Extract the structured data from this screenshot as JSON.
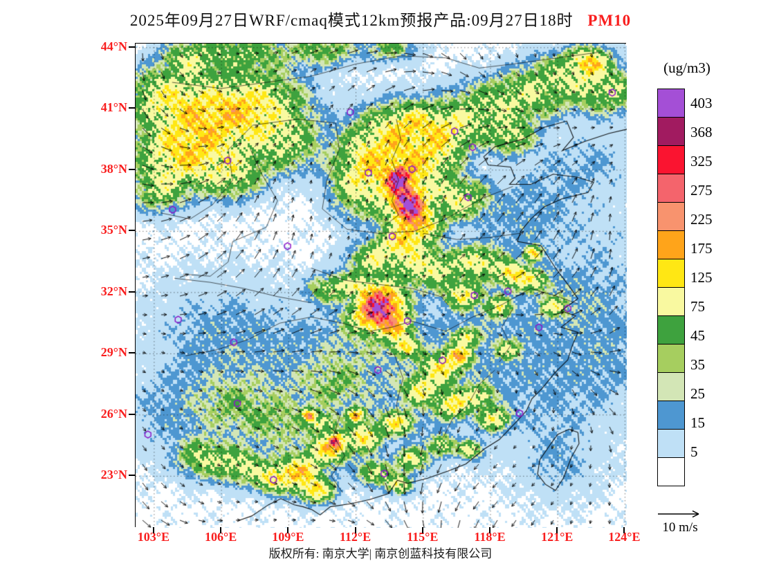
{
  "title": {
    "date_line": "2025年09月27日WRF/cmaq模式12km预报产品:09月27日18时",
    "pollutant": "PM10"
  },
  "colorbar": {
    "units": "(ug/m3)",
    "tick_labels": [
      "403",
      "368",
      "325",
      "275",
      "225",
      "175",
      "125",
      "75",
      "45",
      "35",
      "25",
      "15",
      "5"
    ],
    "thresholds": [
      5,
      15,
      25,
      35,
      45,
      75,
      125,
      175,
      225,
      275,
      325,
      368,
      403
    ],
    "colors_low_to_high": [
      "#FFFFFF",
      "#BFE0F6",
      "#4E97D1",
      "#D3E6B6",
      "#A6CE5F",
      "#3EA23E",
      "#F9F9A0",
      "#FFE714",
      "#FFA41A",
      "#F8936E",
      "#F4646C",
      "#FA1430",
      "#A11B60",
      "#A44FD6"
    ]
  },
  "axes": {
    "lat_labels": [
      "44°N",
      "41°N",
      "38°N",
      "35°N",
      "32°N",
      "29°N",
      "26°N",
      "23°N"
    ],
    "lat_values": [
      44,
      41,
      38,
      35,
      32,
      29,
      26,
      23
    ],
    "lon_labels": [
      "103°E",
      "106°E",
      "109°E",
      "112°E",
      "115°E",
      "118°E",
      "121°E",
      "124°E"
    ],
    "lon_values": [
      103,
      106,
      109,
      112,
      115,
      118,
      121,
      124
    ]
  },
  "wind_reference": {
    "label": "10 m/s"
  },
  "footer": {
    "copyright": "版权所有: 南京大学| 南京创蓝科技有限公司"
  },
  "style": {
    "axis_label_color": "#F91E1E",
    "pollutant_color": "#F91E1E",
    "marker_color": "#8A17C8"
  },
  "map": {
    "extent": {
      "lon_min": 102.17,
      "lon_max": 124.08,
      "lat_min": 20.47,
      "lat_max": 44.2
    },
    "city_markers": [
      [
        116.4,
        39.9
      ],
      [
        117.2,
        39.12
      ],
      [
        114.5,
        38.04
      ],
      [
        112.55,
        37.87
      ],
      [
        111.75,
        40.84
      ],
      [
        117.0,
        36.67
      ],
      [
        113.62,
        34.75
      ],
      [
        108.95,
        34.27
      ],
      [
        103.82,
        36.06
      ],
      [
        106.28,
        38.47
      ],
      [
        121.45,
        31.22
      ],
      [
        118.78,
        32.06
      ],
      [
        120.16,
        30.29
      ],
      [
        117.28,
        31.86
      ],
      [
        114.3,
        30.6
      ],
      [
        112.98,
        28.2
      ],
      [
        115.86,
        28.68
      ],
      [
        104.07,
        30.67
      ],
      [
        106.55,
        29.56
      ],
      [
        106.71,
        26.57
      ],
      [
        102.72,
        25.04
      ],
      [
        108.32,
        22.82
      ],
      [
        113.26,
        23.13
      ],
      [
        119.3,
        26.08
      ],
      [
        123.43,
        41.8
      ]
    ],
    "pollution_centers": [
      [
        105.5,
        40.5,
        2.2,
        1.6,
        115
      ],
      [
        104.3,
        38.7,
        1.8,
        1.4,
        120
      ],
      [
        107.5,
        41.2,
        2.0,
        1.4,
        95
      ],
      [
        103.4,
        41.6,
        1.5,
        1.2,
        80
      ],
      [
        108.8,
        39.3,
        1.4,
        1.2,
        70
      ],
      [
        106.5,
        37.8,
        1.2,
        1.0,
        75
      ],
      [
        103.2,
        37.0,
        1.0,
        0.9,
        60
      ],
      [
        107.0,
        43.8,
        2.0,
        0.9,
        55
      ],
      [
        104.6,
        43.4,
        1.1,
        0.8,
        65
      ],
      [
        110.6,
        43.9,
        1.3,
        0.7,
        50
      ],
      [
        113.5,
        44.0,
        1.0,
        0.6,
        45
      ],
      [
        113.5,
        39.2,
        1.6,
        1.5,
        110
      ],
      [
        114.6,
        40.3,
        1.2,
        0.9,
        85
      ],
      [
        112.3,
        37.6,
        1.2,
        1.6,
        105
      ],
      [
        114.2,
        37.0,
        1.0,
        1.4,
        155
      ],
      [
        114.3,
        36.3,
        0.55,
        0.6,
        330
      ],
      [
        113.9,
        37.55,
        0.42,
        0.5,
        300
      ],
      [
        114.8,
        35.3,
        0.8,
        0.7,
        165
      ],
      [
        114.0,
        34.4,
        0.9,
        0.7,
        115
      ],
      [
        116.2,
        39.9,
        1.2,
        1.0,
        80
      ],
      [
        117.8,
        40.9,
        1.8,
        1.2,
        60
      ],
      [
        119.6,
        41.6,
        1.6,
        1.0,
        55
      ],
      [
        121.2,
        42.6,
        1.6,
        1.0,
        60
      ],
      [
        123.2,
        41.9,
        1.5,
        1.0,
        70
      ],
      [
        122.4,
        43.3,
        0.8,
        0.6,
        135
      ],
      [
        116.5,
        36.6,
        1.2,
        0.9,
        95
      ],
      [
        115.5,
        38.6,
        1.0,
        1.0,
        90
      ],
      [
        118.9,
        39.6,
        0.9,
        0.7,
        70
      ],
      [
        113.2,
        31.4,
        0.8,
        0.8,
        330
      ],
      [
        112.7,
        30.8,
        0.9,
        0.7,
        150
      ],
      [
        113.8,
        30.2,
        0.7,
        0.6,
        110
      ],
      [
        112.2,
        32.3,
        0.8,
        0.6,
        90
      ],
      [
        115.2,
        33.2,
        1.4,
        0.9,
        95
      ],
      [
        112.8,
        33.6,
        1.0,
        0.7,
        80
      ],
      [
        110.8,
        32.2,
        0.8,
        0.6,
        70
      ],
      [
        117.5,
        33.5,
        0.9,
        0.7,
        100
      ],
      [
        118.9,
        32.9,
        0.6,
        0.5,
        130
      ],
      [
        116.8,
        31.9,
        0.7,
        0.6,
        110
      ],
      [
        119.8,
        32.6,
        0.8,
        0.5,
        85
      ],
      [
        118.3,
        31.3,
        0.5,
        0.45,
        100
      ],
      [
        119.9,
        33.9,
        0.3,
        0.3,
        200
      ],
      [
        120.8,
        31.3,
        0.5,
        0.4,
        80
      ],
      [
        115.8,
        28.3,
        0.8,
        0.7,
        110
      ],
      [
        116.6,
        28.9,
        0.5,
        0.4,
        145
      ],
      [
        114.9,
        27.2,
        0.7,
        0.6,
        100
      ],
      [
        116.3,
        26.5,
        0.7,
        0.6,
        120
      ],
      [
        117.5,
        26.9,
        0.6,
        0.5,
        95
      ],
      [
        118.2,
        25.8,
        0.6,
        0.5,
        105
      ],
      [
        113.8,
        25.6,
        0.7,
        0.5,
        110
      ],
      [
        112.3,
        24.9,
        0.7,
        0.6,
        120
      ],
      [
        110.8,
        24.3,
        0.8,
        0.6,
        130
      ],
      [
        109.5,
        23.2,
        0.9,
        0.7,
        140
      ],
      [
        108.3,
        22.9,
        0.8,
        0.6,
        110
      ],
      [
        106.8,
        23.5,
        0.9,
        0.7,
        85
      ],
      [
        105.2,
        23.9,
        1.0,
        0.8,
        70
      ],
      [
        110.2,
        22.3,
        0.7,
        0.5,
        125
      ],
      [
        112.8,
        23.2,
        0.6,
        0.5,
        95
      ],
      [
        114.5,
        23.8,
        0.6,
        0.5,
        100
      ],
      [
        115.8,
        24.5,
        0.5,
        0.45,
        90
      ],
      [
        117.1,
        24.3,
        0.5,
        0.4,
        85
      ],
      [
        113.9,
        22.6,
        0.5,
        0.4,
        115
      ],
      [
        111.1,
        24.7,
        0.3,
        0.3,
        240
      ],
      [
        109.9,
        26.0,
        0.25,
        0.25,
        210
      ],
      [
        112.0,
        26.0,
        0.35,
        0.3,
        160
      ],
      [
        114.2,
        29.3,
        0.5,
        0.4,
        120
      ],
      [
        116.9,
        29.8,
        0.5,
        0.4,
        100
      ],
      [
        118.8,
        29.2,
        0.5,
        0.4,
        70
      ],
      [
        110.5,
        25.6,
        0.5,
        0.4,
        90
      ],
      [
        106.5,
        26.5,
        1.5,
        1.2,
        24
      ],
      [
        108.5,
        25.5,
        1.5,
        1.2,
        26
      ],
      [
        111.0,
        27.5,
        1.2,
        1.0,
        22
      ],
      [
        109.0,
        27.0,
        4.0,
        3.0,
        14
      ],
      [
        114.0,
        27.5,
        4.0,
        3.0,
        12
      ],
      [
        118.0,
        30.0,
        3.0,
        2.5,
        12
      ],
      [
        121.0,
        27.0,
        3.0,
        3.0,
        10
      ],
      [
        123.0,
        33.0,
        3.0,
        4.0,
        9
      ],
      [
        120.0,
        36.5,
        2.0,
        2.0,
        10
      ],
      [
        106.0,
        30.0,
        3.0,
        2.5,
        13
      ],
      [
        104.0,
        26.0,
        2.5,
        2.0,
        12
      ],
      [
        122.5,
        38.5,
        2.0,
        1.5,
        10
      ],
      [
        112.0,
        29.5,
        2.0,
        1.5,
        14
      ],
      [
        121.5,
        31.5,
        1.5,
        1.2,
        12
      ],
      [
        119.0,
        35.0,
        1.5,
        1.5,
        9
      ],
      [
        123.3,
        29.0,
        1.5,
        2.0,
        9
      ],
      [
        121.0,
        23.5,
        1.5,
        1.5,
        10
      ]
    ],
    "outlines": [
      [
        [
          124.08,
          40.0
        ],
        [
          123.3,
          39.8
        ],
        [
          122.2,
          39.4
        ],
        [
          121.2,
          38.95
        ],
        [
          121.7,
          39.6
        ],
        [
          121.4,
          40.4
        ],
        [
          120.4,
          40.1
        ],
        [
          119.4,
          39.5
        ],
        [
          118.2,
          39.15
        ],
        [
          117.7,
          38.65
        ],
        [
          117.9,
          38.25
        ],
        [
          118.9,
          38.15
        ],
        [
          119.1,
          37.6
        ],
        [
          118.85,
          37.3
        ],
        [
          119.8,
          37.3
        ],
        [
          120.8,
          37.8
        ],
        [
          121.9,
          37.65
        ],
        [
          122.6,
          37.4
        ],
        [
          122.35,
          36.9
        ],
        [
          121.2,
          36.6
        ],
        [
          120.4,
          36.2
        ],
        [
          119.8,
          35.6
        ],
        [
          119.35,
          35.0
        ],
        [
          119.2,
          34.5
        ],
        [
          120.25,
          34.3
        ],
        [
          120.9,
          33.2
        ],
        [
          121.45,
          32.4
        ],
        [
          121.9,
          31.7
        ],
        [
          121.15,
          31.1
        ],
        [
          121.8,
          30.85
        ],
        [
          121.15,
          30.3
        ],
        [
          121.9,
          30.05
        ],
        [
          121.65,
          29.4
        ],
        [
          121.45,
          28.7
        ],
        [
          120.9,
          28.1
        ],
        [
          120.3,
          27.3
        ],
        [
          119.85,
          26.8
        ],
        [
          119.6,
          26.2
        ],
        [
          119.1,
          25.6
        ],
        [
          118.4,
          24.8
        ],
        [
          117.75,
          24.35
        ],
        [
          116.9,
          23.6
        ],
        [
          116.1,
          23.25
        ],
        [
          115.2,
          22.9
        ],
        [
          114.3,
          22.65
        ],
        [
          113.85,
          22.8
        ],
        [
          113.45,
          22.15
        ],
        [
          112.6,
          21.85
        ],
        [
          111.75,
          21.65
        ],
        [
          110.85,
          21.5
        ],
        [
          110.4,
          21.1
        ],
        [
          110.05,
          21.35
        ],
        [
          109.65,
          21.5
        ],
        [
          109.25,
          21.6
        ],
        [
          108.65,
          21.9
        ],
        [
          108.1,
          21.6
        ],
        [
          107.35,
          21.05
        ],
        [
          106.7,
          20.8
        ]
      ],
      [
        [
          121.9,
          25.15
        ],
        [
          121.5,
          25.3
        ],
        [
          121.0,
          25.05
        ],
        [
          120.7,
          24.6
        ],
        [
          120.2,
          23.8
        ],
        [
          120.1,
          23.1
        ],
        [
          120.45,
          22.6
        ],
        [
          120.9,
          22.3
        ],
        [
          121.25,
          22.9
        ],
        [
          121.6,
          23.9
        ],
        [
          121.95,
          24.6
        ],
        [
          121.9,
          25.15
        ]
      ],
      [
        [
          103.3,
          35.9
        ],
        [
          104.6,
          35.6
        ],
        [
          105.6,
          36.3
        ],
        [
          106.5,
          37.5
        ],
        [
          106.3,
          39.0
        ],
        [
          107.4,
          40.2
        ],
        [
          109.4,
          40.5
        ],
        [
          111.1,
          40.3
        ],
        [
          111.25,
          39.0
        ],
        [
          110.7,
          37.5
        ],
        [
          110.5,
          36.1
        ],
        [
          111.6,
          35.1
        ],
        [
          113.0,
          34.9
        ],
        [
          114.6,
          35.0
        ],
        [
          116.0,
          35.6
        ],
        [
          117.6,
          36.6
        ],
        [
          119.0,
          37.2
        ]
      ],
      [
        [
          104.4,
          28.9
        ],
        [
          105.8,
          29.2
        ],
        [
          107.2,
          29.7
        ],
        [
          108.6,
          30.5
        ],
        [
          110.0,
          30.8
        ],
        [
          111.4,
          30.5
        ],
        [
          112.6,
          30.1
        ],
        [
          113.6,
          30.3
        ],
        [
          114.5,
          30.6
        ],
        [
          116.0,
          30.1
        ],
        [
          117.2,
          30.8
        ],
        [
          118.5,
          31.4
        ],
        [
          119.8,
          32.2
        ],
        [
          121.0,
          31.8
        ],
        [
          121.9,
          31.45
        ]
      ],
      [
        [
          103.8,
          42.3
        ],
        [
          106.0,
          42.0
        ],
        [
          108.0,
          42.3
        ],
        [
          110.0,
          42.6
        ],
        [
          112.0,
          43.2
        ],
        [
          114.0,
          43.6
        ],
        [
          116.0,
          43.5
        ],
        [
          117.5,
          43.0
        ],
        [
          119.0,
          43.2
        ],
        [
          121.0,
          43.5
        ],
        [
          123.0,
          43.8
        ]
      ],
      [
        [
          113.8,
          40.5
        ],
        [
          114.0,
          39.5
        ],
        [
          113.6,
          38.5
        ],
        [
          113.9,
          37.5
        ],
        [
          113.6,
          36.5
        ],
        [
          113.9,
          35.8
        ],
        [
          113.3,
          35.3
        ]
      ],
      [
        [
          107.3,
          39.0
        ],
        [
          107.8,
          37.8
        ],
        [
          108.5,
          36.5
        ],
        [
          108.0,
          35.2
        ],
        [
          106.5,
          34.5
        ],
        [
          106.3,
          33.5
        ],
        [
          105.5,
          32.8
        ],
        [
          104.3,
          32.9
        ]
      ],
      [
        [
          110.0,
          33.2
        ],
        [
          111.5,
          32.6
        ],
        [
          113.0,
          32.4
        ],
        [
          114.5,
          32.2
        ],
        [
          115.8,
          31.8
        ],
        [
          116.1,
          31.4
        ]
      ],
      [
        [
          113.7,
          29.0
        ],
        [
          114.1,
          27.8
        ],
        [
          113.8,
          26.5
        ],
        [
          114.0,
          25.5
        ]
      ],
      [
        [
          111.3,
          26.0
        ],
        [
          111.0,
          25.0
        ],
        [
          111.5,
          24.0
        ],
        [
          110.9,
          23.0
        ],
        [
          111.4,
          22.2
        ]
      ],
      [
        [
          118.2,
          28.2
        ],
        [
          117.5,
          27.5
        ],
        [
          117.0,
          26.5
        ],
        [
          116.3,
          25.8
        ],
        [
          115.9,
          24.9
        ]
      ],
      [
        [
          115.0,
          34.9
        ],
        [
          116.5,
          34.6
        ],
        [
          118.0,
          34.7
        ],
        [
          119.3,
          34.9
        ]
      ],
      [
        [
          103.9,
          32.7
        ],
        [
          105.5,
          32.5
        ],
        [
          107.0,
          32.2
        ],
        [
          108.5,
          31.8
        ],
        [
          110.0,
          31.5
        ]
      ],
      [
        [
          119.0,
          31.2
        ],
        [
          118.5,
          30.3
        ],
        [
          118.9,
          29.4
        ],
        [
          118.4,
          28.6
        ]
      ]
    ]
  }
}
